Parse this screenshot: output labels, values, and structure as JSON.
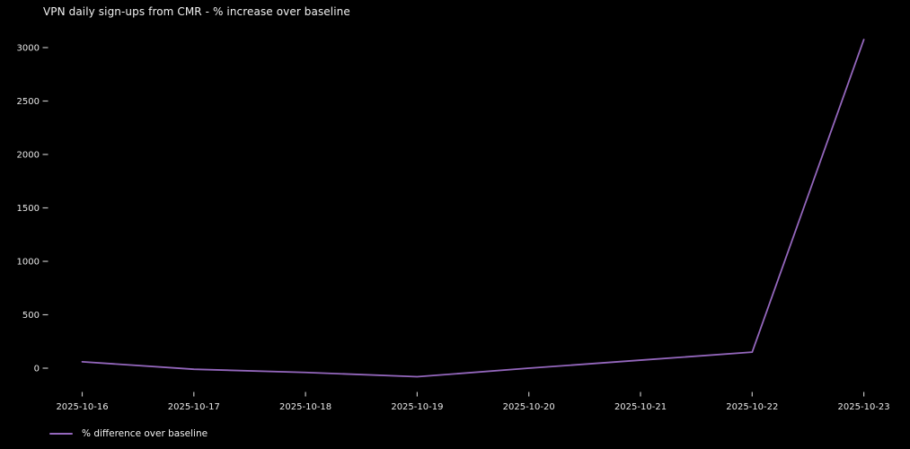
{
  "title": "VPN daily sign-ups from CMR - % increase over baseline",
  "legend": {
    "label": "% difference over baseline"
  },
  "colors": {
    "background": "#000000",
    "title_text": "#f2f2f2",
    "tick_text": "#e8e8e8",
    "tick_mark": "#c0c0c0",
    "line": "#9467bd"
  },
  "chart_data": {
    "type": "line",
    "title": "VPN daily sign-ups from CMR - % increase over baseline",
    "x": [
      "2025-10-16",
      "2025-10-17",
      "2025-10-18",
      "2025-10-19",
      "2025-10-20",
      "2025-10-21",
      "2025-10-22",
      "2025-10-23"
    ],
    "series": [
      {
        "name": "% difference over baseline",
        "values": [
          60,
          -10,
          -40,
          -80,
          0,
          75,
          150,
          3075
        ]
      }
    ],
    "yticks": [
      0,
      500,
      1000,
      1500,
      2000,
      2500,
      3000
    ],
    "ylim": [
      -230,
      3230
    ],
    "xlabel": "",
    "ylabel": "",
    "grid": false,
    "legend_position": "lower-left"
  }
}
